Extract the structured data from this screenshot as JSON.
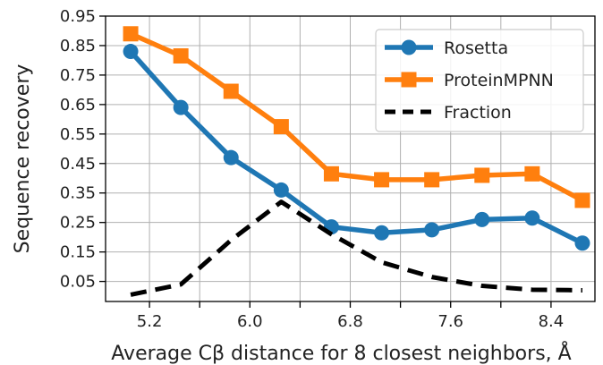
{
  "chart_data": {
    "type": "line",
    "title": "",
    "xlabel": "Average Cβ distance for 8 closest neighbors, Å",
    "ylabel": "Sequence recovery",
    "xlim": [
      4.85,
      8.75
    ],
    "ylim": [
      -0.018,
      0.95
    ],
    "x_ticks": [
      5.2,
      5.6,
      6.0,
      6.4,
      6.8,
      7.2,
      7.6,
      8.0,
      8.4
    ],
    "x_tick_labels": [
      "5.2",
      "",
      "6.0",
      "",
      "6.8",
      "",
      "7.6",
      "",
      "8.4"
    ],
    "y_ticks": [
      0.05,
      0.15,
      0.25,
      0.35,
      0.45,
      0.55,
      0.65,
      0.75,
      0.85,
      0.95
    ],
    "y_tick_labels": [
      "0.05",
      "0.15",
      "0.25",
      "0.35",
      "0.45",
      "0.55",
      "0.65",
      "0.75",
      "0.85",
      "0.95"
    ],
    "grid": true,
    "legend_position": "top-right",
    "x": [
      5.05,
      5.45,
      5.85,
      6.25,
      6.65,
      7.05,
      7.45,
      7.85,
      8.25,
      8.65
    ],
    "series": [
      {
        "name": "Rosetta",
        "color": "#1f77b4",
        "marker": "circle",
        "linestyle": "solid",
        "values": [
          0.83,
          0.64,
          0.47,
          0.36,
          0.235,
          0.215,
          0.225,
          0.26,
          0.265,
          0.18
        ]
      },
      {
        "name": "ProteinMPNN",
        "color": "#ff7f0e",
        "marker": "square",
        "linestyle": "solid",
        "values": [
          0.89,
          0.815,
          0.695,
          0.575,
          0.415,
          0.395,
          0.395,
          0.41,
          0.415,
          0.325
        ]
      },
      {
        "name": "Fraction",
        "color": "#000000",
        "marker": "none",
        "linestyle": "dashed",
        "values": [
          0.005,
          0.04,
          0.19,
          0.32,
          0.21,
          0.115,
          0.065,
          0.035,
          0.022,
          0.02
        ]
      }
    ]
  }
}
